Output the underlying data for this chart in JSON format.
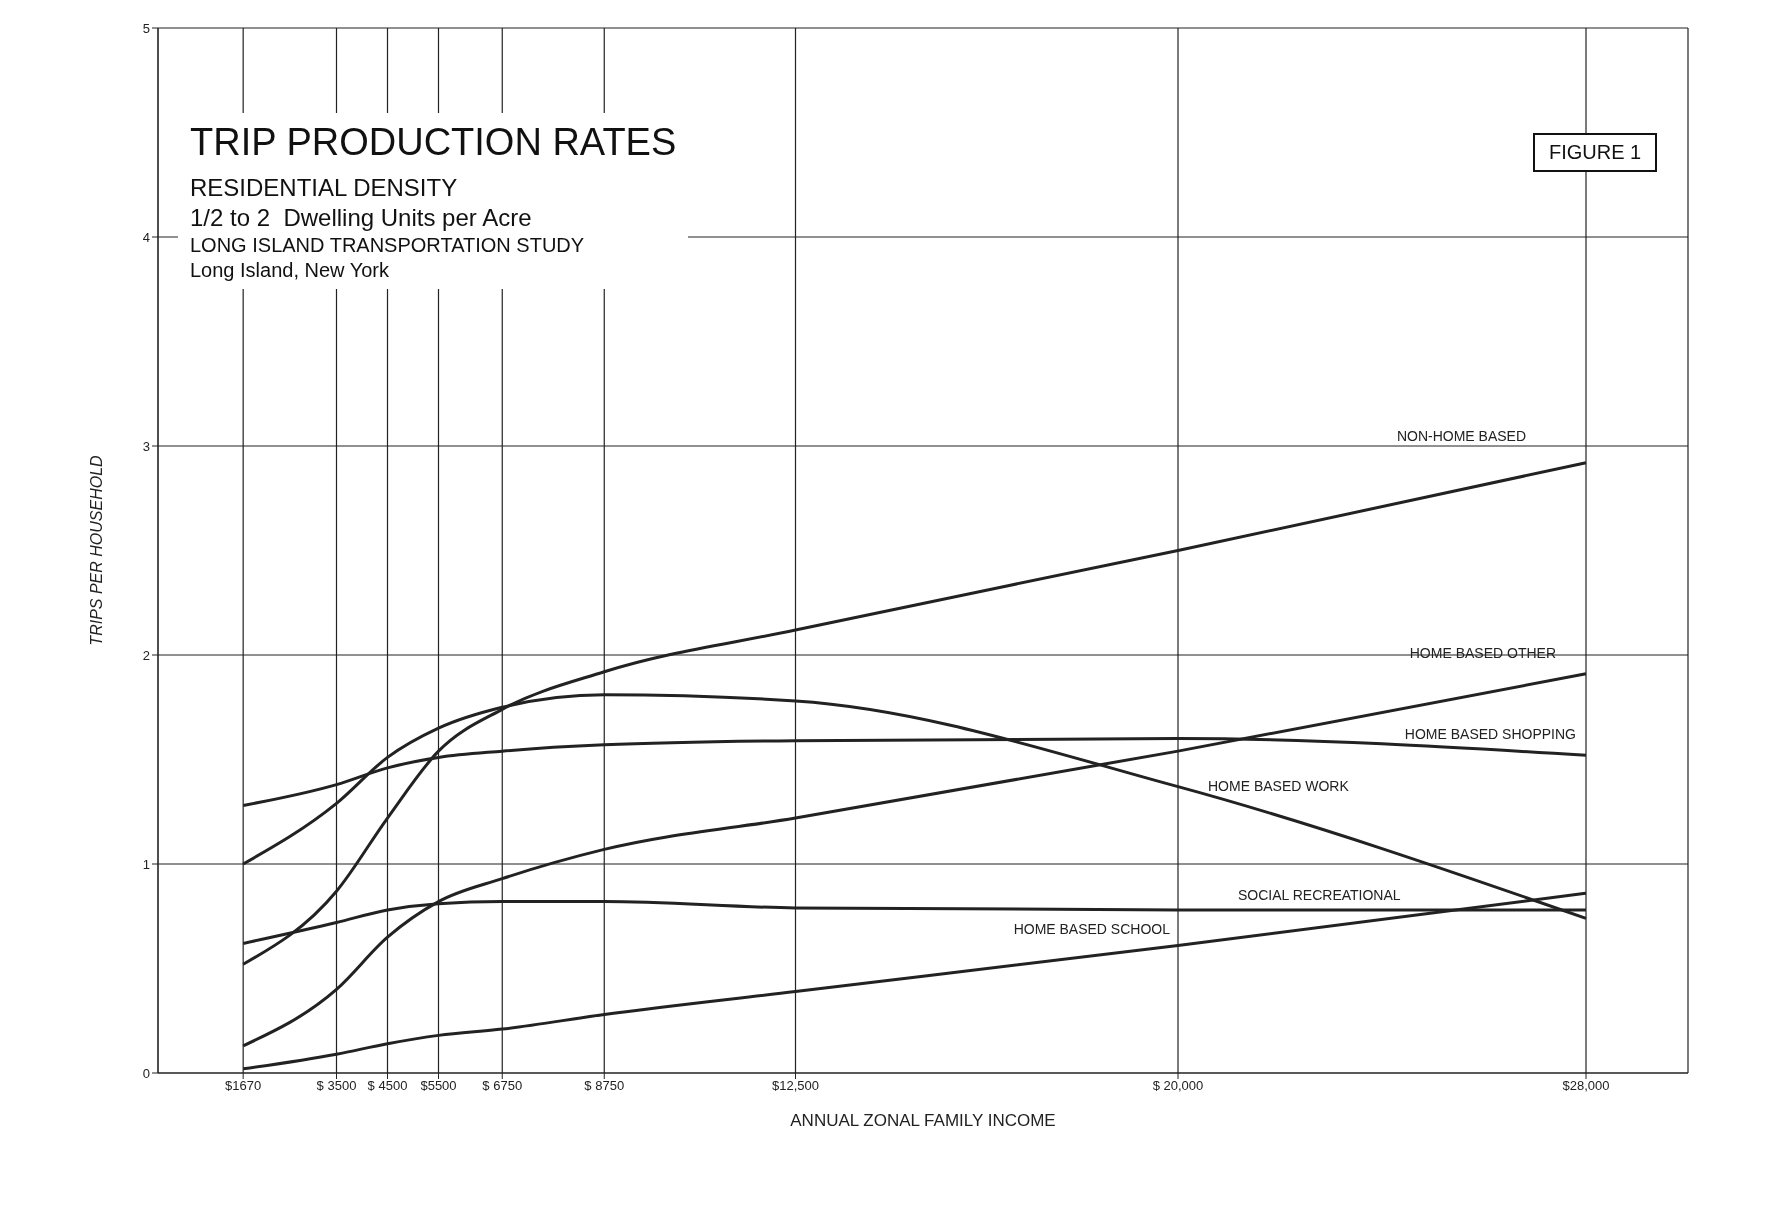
{
  "chart_data": {
    "type": "line",
    "title": "TRIP PRODUCTION RATES",
    "subtitle": "RESIDENTIAL DENSITY",
    "annotations": [
      "1/2 to 2  Dwelling Units per Acre",
      "LONG ISLAND TRANSPORTATION STUDY",
      "Long Island, New York",
      "FIGURE 1"
    ],
    "xlabel": "ANNUAL ZONAL FAMILY INCOME",
    "ylabel": "TRIPS PER HOUSEHOLD",
    "x": [
      1670,
      3500,
      4500,
      5500,
      6750,
      8750,
      12500,
      20000,
      28000
    ],
    "series": [
      {
        "name": "NON-HOME BASED",
        "color": "#222222",
        "values": [
          0.52,
          0.87,
          1.22,
          1.54,
          1.74,
          1.92,
          2.12,
          2.5,
          2.92
        ]
      },
      {
        "name": "HOME BASED OTHER",
        "color": "#222222",
        "values": [
          0.13,
          0.4,
          0.65,
          0.82,
          0.93,
          1.07,
          1.22,
          1.54,
          1.91
        ]
      },
      {
        "name": "HOME BASED SHOPPING",
        "color": "#222222",
        "values": [
          1.28,
          1.38,
          1.46,
          1.51,
          1.54,
          1.57,
          1.59,
          1.6,
          1.52
        ]
      },
      {
        "name": "HOME BASED WORK",
        "color": "#222222",
        "values": [
          1.0,
          1.29,
          1.51,
          1.65,
          1.75,
          1.81,
          1.78,
          1.37,
          0.74
        ]
      },
      {
        "name": "SOCIAL RECREATIONAL",
        "color": "#222222",
        "values": [
          0.62,
          0.72,
          0.78,
          0.81,
          0.82,
          0.82,
          0.79,
          0.78,
          0.78
        ]
      },
      {
        "name": "HOME BASED SCHOOL",
        "color": "#222222",
        "values": [
          0.02,
          0.09,
          0.14,
          0.18,
          0.21,
          0.28,
          0.39,
          0.61,
          0.86
        ]
      }
    ],
    "xlim": [
      0,
      30000
    ],
    "xticks": [
      {
        "value": 1670,
        "label": "$1670"
      },
      {
        "value": 3500,
        "label": "$ 3500"
      },
      {
        "value": 4500,
        "label": "$ 4500"
      },
      {
        "value": 5500,
        "label": "$5500"
      },
      {
        "value": 6750,
        "label": "$ 6750"
      },
      {
        "value": 8750,
        "label": "$ 8750"
      },
      {
        "value": 12500,
        "label": "$12,500"
      },
      {
        "value": 20000,
        "label": "$ 20,000"
      },
      {
        "value": 28000,
        "label": "$28,000"
      }
    ],
    "ylim": [
      0,
      5
    ],
    "yticks": [
      0,
      1,
      2,
      3,
      4,
      5
    ],
    "grid": true,
    "marker": "none",
    "line_style": "solid"
  }
}
